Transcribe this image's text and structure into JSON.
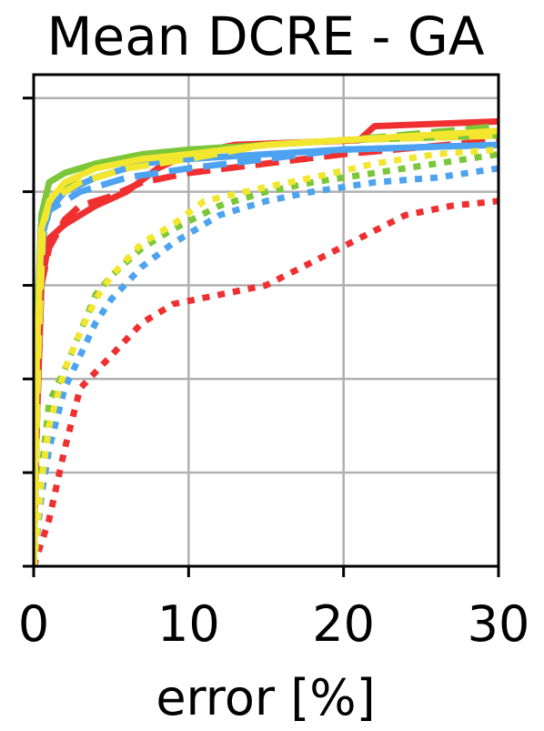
{
  "chart_data": {
    "type": "line",
    "title": "Mean DCRE - GA",
    "xlabel": "error [%]",
    "ylabel": "",
    "xlim": [
      0,
      30
    ],
    "ylim": [
      0,
      1.05
    ],
    "x_ticks": [
      0,
      10,
      20,
      30
    ],
    "x_tick_labels": [
      "0",
      "10",
      "20",
      "30"
    ],
    "y_ticks": [
      0,
      0.2,
      0.4,
      0.6,
      0.8,
      1.0
    ],
    "y_tick_labels": [
      "",
      "",
      "",
      "",
      "",
      ""
    ],
    "grid": true,
    "legend": "none",
    "series": [
      {
        "color": "#f03030",
        "style": "solid",
        "points": [
          [
            0,
            0
          ],
          [
            0.2,
            0.3
          ],
          [
            0.5,
            0.6
          ],
          [
            1,
            0.7
          ],
          [
            2,
            0.73
          ],
          [
            4,
            0.77
          ],
          [
            6,
            0.8
          ],
          [
            8,
            0.85
          ],
          [
            10,
            0.88
          ],
          [
            13,
            0.9
          ],
          [
            21,
            0.91
          ],
          [
            22,
            0.94
          ],
          [
            30,
            0.95
          ]
        ]
      },
      {
        "color": "#f03030",
        "style": "dashed",
        "points": [
          [
            0,
            0
          ],
          [
            0.2,
            0.3
          ],
          [
            0.5,
            0.6
          ],
          [
            1,
            0.68
          ],
          [
            2,
            0.74
          ],
          [
            3,
            0.77
          ],
          [
            5,
            0.79
          ],
          [
            7,
            0.82
          ],
          [
            10,
            0.84
          ],
          [
            15,
            0.86
          ],
          [
            20,
            0.88
          ],
          [
            30,
            0.91
          ]
        ]
      },
      {
        "color": "#f03030",
        "style": "dotted",
        "points": [
          [
            0,
            0
          ],
          [
            1,
            0.1
          ],
          [
            2,
            0.25
          ],
          [
            3,
            0.38
          ],
          [
            5,
            0.45
          ],
          [
            7,
            0.52
          ],
          [
            9,
            0.56
          ],
          [
            12,
            0.58
          ],
          [
            15,
            0.6
          ],
          [
            18,
            0.65
          ],
          [
            21,
            0.7
          ],
          [
            24,
            0.75
          ],
          [
            27,
            0.77
          ],
          [
            30,
            0.78
          ]
        ]
      },
      {
        "color": "#7cc63a",
        "style": "solid",
        "points": [
          [
            0,
            0
          ],
          [
            0.2,
            0.5
          ],
          [
            0.5,
            0.75
          ],
          [
            1,
            0.82
          ],
          [
            2,
            0.84
          ],
          [
            4,
            0.86
          ],
          [
            7,
            0.88
          ],
          [
            10,
            0.89
          ],
          [
            15,
            0.9
          ],
          [
            20,
            0.91
          ],
          [
            30,
            0.92
          ]
        ]
      },
      {
        "color": "#7cc63a",
        "style": "dashed",
        "points": [
          [
            0,
            0
          ],
          [
            0.3,
            0.5
          ],
          [
            0.6,
            0.75
          ],
          [
            1,
            0.79
          ],
          [
            3,
            0.82
          ],
          [
            6,
            0.85
          ],
          [
            10,
            0.88
          ],
          [
            15,
            0.9
          ],
          [
            20,
            0.91
          ],
          [
            30,
            0.94
          ]
        ]
      },
      {
        "color": "#7cc63a",
        "style": "dotted",
        "points": [
          [
            0,
            0
          ],
          [
            0.5,
            0.2
          ],
          [
            1,
            0.35
          ],
          [
            2,
            0.42
          ],
          [
            3,
            0.5
          ],
          [
            4,
            0.58
          ],
          [
            5,
            0.62
          ],
          [
            7,
            0.68
          ],
          [
            9,
            0.72
          ],
          [
            12,
            0.77
          ],
          [
            15,
            0.8
          ],
          [
            18,
            0.82
          ],
          [
            22,
            0.84
          ],
          [
            26,
            0.86
          ],
          [
            30,
            0.88
          ]
        ]
      },
      {
        "color": "#4da3ef",
        "style": "solid",
        "points": [
          [
            0,
            0
          ],
          [
            0.2,
            0.45
          ],
          [
            0.5,
            0.7
          ],
          [
            1,
            0.76
          ],
          [
            2,
            0.8
          ],
          [
            4,
            0.83
          ],
          [
            7,
            0.86
          ],
          [
            10,
            0.87
          ],
          [
            15,
            0.88
          ],
          [
            20,
            0.89
          ],
          [
            30,
            0.9
          ]
        ]
      },
      {
        "color": "#4da3ef",
        "style": "dashed",
        "points": [
          [
            0,
            0
          ],
          [
            0.3,
            0.45
          ],
          [
            0.6,
            0.7
          ],
          [
            1,
            0.76
          ],
          [
            3,
            0.8
          ],
          [
            6,
            0.83
          ],
          [
            10,
            0.85
          ],
          [
            15,
            0.87
          ],
          [
            20,
            0.89
          ],
          [
            30,
            0.9
          ]
        ]
      },
      {
        "color": "#4da3ef",
        "style": "dotted",
        "points": [
          [
            0,
            0
          ],
          [
            0.5,
            0.15
          ],
          [
            1,
            0.25
          ],
          [
            2,
            0.38
          ],
          [
            3,
            0.45
          ],
          [
            4,
            0.52
          ],
          [
            5,
            0.57
          ],
          [
            7,
            0.64
          ],
          [
            9,
            0.69
          ],
          [
            12,
            0.75
          ],
          [
            15,
            0.78
          ],
          [
            18,
            0.8
          ],
          [
            22,
            0.82
          ],
          [
            26,
            0.83
          ],
          [
            30,
            0.85
          ]
        ]
      },
      {
        "color": "#f2e62e",
        "style": "solid",
        "points": [
          [
            0,
            0
          ],
          [
            0.2,
            0.45
          ],
          [
            0.5,
            0.72
          ],
          [
            1,
            0.78
          ],
          [
            2,
            0.82
          ],
          [
            4,
            0.85
          ],
          [
            7,
            0.87
          ],
          [
            10,
            0.88
          ],
          [
            15,
            0.9
          ],
          [
            20,
            0.91
          ],
          [
            30,
            0.93
          ]
        ]
      },
      {
        "color": "#f2e62e",
        "style": "dashed",
        "points": [
          [
            0,
            0
          ],
          [
            0.3,
            0.45
          ],
          [
            0.6,
            0.72
          ],
          [
            1,
            0.78
          ],
          [
            3,
            0.82
          ],
          [
            6,
            0.85
          ],
          [
            10,
            0.87
          ],
          [
            15,
            0.9
          ],
          [
            20,
            0.91
          ],
          [
            30,
            0.92
          ]
        ]
      },
      {
        "color": "#f2e62e",
        "style": "dotted",
        "points": [
          [
            0,
            0
          ],
          [
            0.5,
            0.18
          ],
          [
            1,
            0.3
          ],
          [
            2,
            0.42
          ],
          [
            3,
            0.5
          ],
          [
            4,
            0.57
          ],
          [
            5,
            0.62
          ],
          [
            7,
            0.69
          ],
          [
            9,
            0.73
          ],
          [
            11,
            0.78
          ],
          [
            15,
            0.81
          ],
          [
            18,
            0.83
          ],
          [
            22,
            0.86
          ],
          [
            26,
            0.88
          ],
          [
            30,
            0.89
          ]
        ]
      }
    ]
  }
}
